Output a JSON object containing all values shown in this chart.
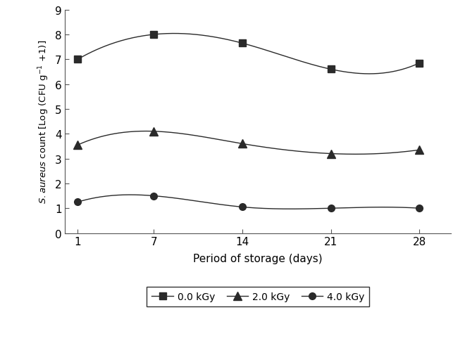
{
  "x": [
    1,
    7,
    14,
    21,
    28
  ],
  "series": [
    {
      "label": "0.0 kGy",
      "values": [
        7.0,
        8.0,
        7.65,
        6.6,
        6.85
      ],
      "marker": "s",
      "markersize": 7
    },
    {
      "label": "2.0 kGy",
      "values": [
        3.55,
        4.1,
        3.6,
        3.2,
        3.35
      ],
      "marker": "^",
      "markersize": 8
    },
    {
      "label": "4.0 kGy",
      "values": [
        1.25,
        1.5,
        1.05,
        1.0,
        1.0
      ],
      "marker": "o",
      "markersize": 7
    }
  ],
  "xlabel": "Period of storage (days)",
  "xlim_left": 0.0,
  "xlim_right": 30.5,
  "ylim": [
    0,
    9
  ],
  "yticks": [
    0,
    1,
    2,
    3,
    4,
    5,
    6,
    7,
    8,
    9
  ],
  "xticks": [
    1,
    7,
    14,
    21,
    28
  ],
  "figsize": [
    6.6,
    4.89
  ],
  "dpi": 100,
  "line_color": "#2a2a2a",
  "linewidth": 1.0,
  "spline_points": 300
}
